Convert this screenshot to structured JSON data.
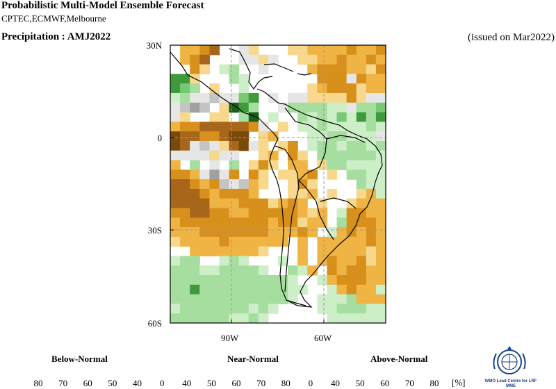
{
  "header": {
    "title": "Probabilistic Multi-Model Ensemble Forecast",
    "subtitle": "CPTEC,ECMWF,Melbourne",
    "variable_period": "Precipitation : AMJ2022",
    "issued": "(issued on Mar2022)"
  },
  "map": {
    "lat_labels": [
      "30N",
      "0",
      "30S",
      "60S"
    ],
    "lon_labels": [
      "90W",
      "60W"
    ],
    "region": "South America"
  },
  "legend": {
    "categories": [
      "Below-Normal",
      "Near-Normal",
      "Above-Normal"
    ],
    "ticks": [
      "80",
      "70",
      "60",
      "50",
      "40",
      "0",
      "40",
      "50",
      "60",
      "70",
      "80",
      "0",
      "40",
      "50",
      "60",
      "70",
      "80"
    ],
    "unit": "[%]",
    "below_colors": [
      "#7a4a0a",
      "#a8661a",
      "#d8901c",
      "#efb443",
      "#f7d88d"
    ],
    "near_colors": [
      "#e6e6e6",
      "#c4c4c4",
      "#a0a0a0",
      "#7a7a7a",
      "#4f4f4f"
    ],
    "above_colors": [
      "#cdefc7",
      "#a6deA0",
      "#77c872",
      "#3e9a3a",
      "#1b5e1a"
    ]
  },
  "logo": {
    "text": "WMO Lead Centre for LRF MME",
    "icon": "wmo-logo-icon"
  }
}
